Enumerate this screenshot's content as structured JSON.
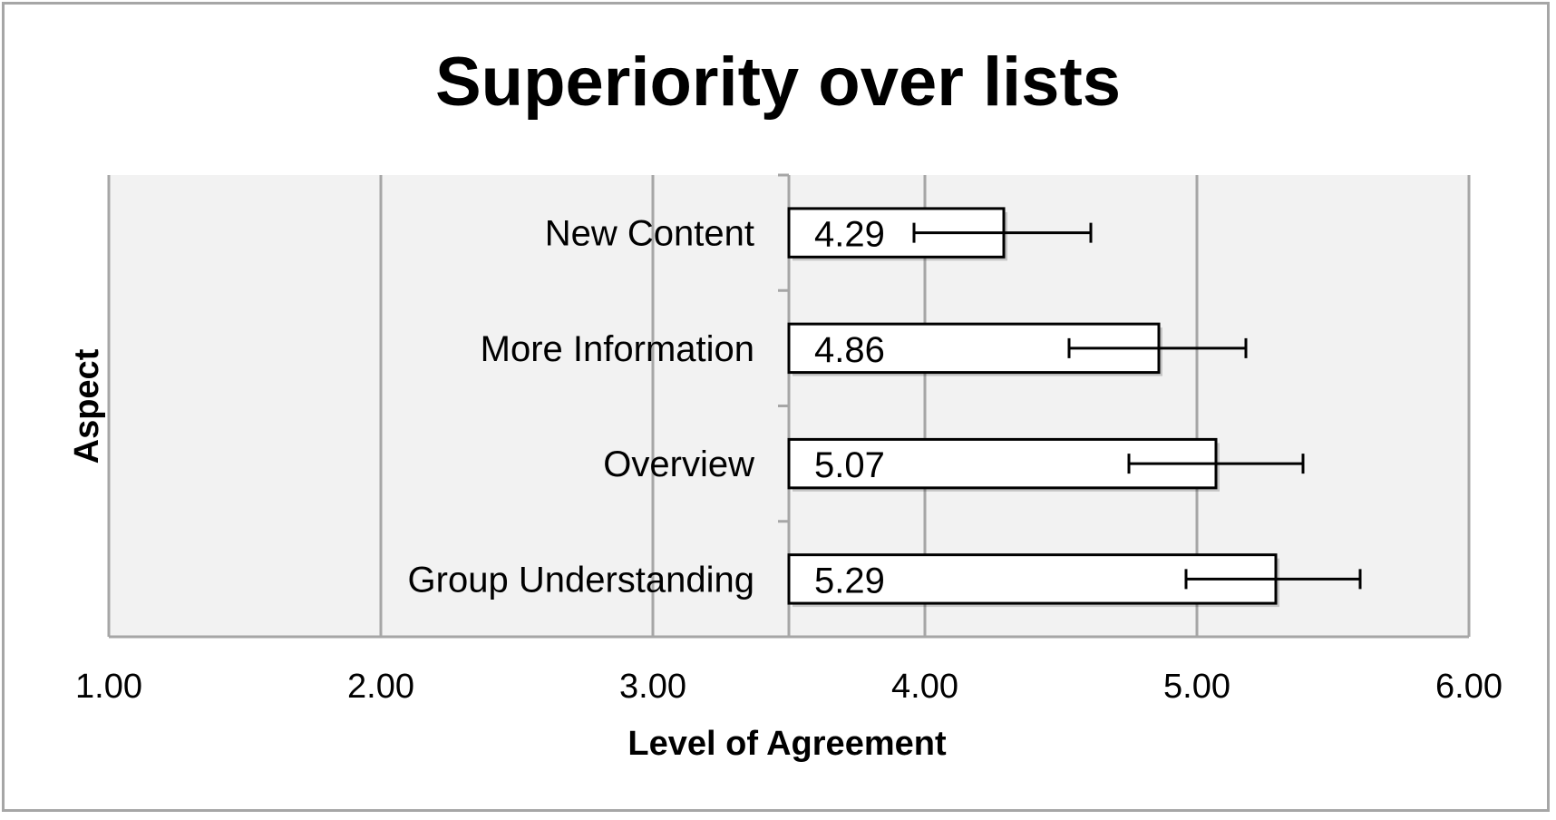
{
  "chart_data": {
    "type": "bar",
    "orientation": "horizontal",
    "title": "Superiority over lists",
    "xlabel": "Level of Agreement",
    "ylabel": "Aspect",
    "categories": [
      "New Content",
      "More Information",
      "Overview",
      "Group Understanding"
    ],
    "values": [
      4.29,
      4.86,
      5.07,
      5.29
    ],
    "value_labels": [
      "4.29",
      "4.86",
      "5.07",
      "5.29"
    ],
    "error_bars": [
      {
        "low": 3.96,
        "high": 4.61
      },
      {
        "low": 4.53,
        "high": 5.18
      },
      {
        "low": 4.75,
        "high": 5.39
      },
      {
        "low": 4.96,
        "high": 5.6
      }
    ],
    "bar_origin": 3.5,
    "xlim": [
      1.0,
      6.0
    ],
    "x_ticks": [
      1.0,
      2.0,
      3.0,
      4.0,
      5.0,
      6.0
    ],
    "x_tick_labels": [
      "1.00",
      "2.00",
      "3.00",
      "4.00",
      "5.00",
      "6.00"
    ],
    "grid": true,
    "legend": "none",
    "colors": {
      "plot_background": "#f2f2f2",
      "gridline": "#a6a6a6",
      "bar_fill": "#ffffff",
      "bar_stroke": "#000000",
      "frame": "#a6a6a6"
    }
  }
}
